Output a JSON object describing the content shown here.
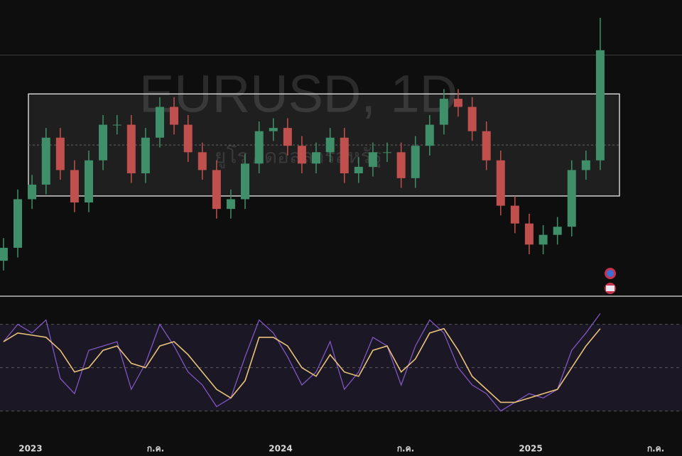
{
  "chart_data": {
    "type": "candlestick",
    "title": "EURUSD, 1D",
    "subtitle": "ยูโร / ดอลลาร์สหรัฐ",
    "x": [
      2022.892,
      2022.949,
      2023.006,
      2023.062,
      2023.119,
      2023.176,
      2023.233,
      2023.29,
      2023.346,
      2023.403,
      2023.46,
      2023.517,
      2023.574,
      2023.63,
      2023.687,
      2023.744,
      2023.801,
      2023.858,
      2023.914,
      2023.971,
      2024.028,
      2024.085,
      2024.142,
      2024.198,
      2024.255,
      2024.312,
      2024.369,
      2024.426,
      2024.482,
      2024.539,
      2024.596,
      2024.653,
      2024.71,
      2024.766,
      2024.823,
      2024.88,
      2024.937,
      2024.994,
      2025.05,
      2025.107,
      2025.164,
      2025.221,
      2025.278
    ],
    "open": [
      1.03,
      1.038,
      1.068,
      1.077,
      1.106,
      1.086,
      1.066,
      1.092,
      1.114,
      1.114,
      1.084,
      1.106,
      1.125,
      1.114,
      1.097,
      1.086,
      1.062,
      1.068,
      1.09,
      1.11,
      1.112,
      1.101,
      1.09,
      1.097,
      1.106,
      1.084,
      1.088,
      1.097,
      1.097,
      1.081,
      1.101,
      1.114,
      1.13,
      1.125,
      1.11,
      1.092,
      1.064,
      1.053,
      1.04,
      1.046,
      1.051,
      1.086,
      1.092
    ],
    "high": [
      1.044,
      1.074,
      1.083,
      1.112,
      1.112,
      1.092,
      1.098,
      1.12,
      1.12,
      1.12,
      1.112,
      1.131,
      1.131,
      1.12,
      1.103,
      1.092,
      1.074,
      1.096,
      1.116,
      1.118,
      1.118,
      1.107,
      1.103,
      1.112,
      1.112,
      1.094,
      1.103,
      1.103,
      1.103,
      1.107,
      1.12,
      1.136,
      1.136,
      1.131,
      1.116,
      1.098,
      1.07,
      1.059,
      1.052,
      1.057,
      1.092,
      1.098,
      1.18
    ],
    "low": [
      1.024,
      1.032,
      1.062,
      1.071,
      1.08,
      1.06,
      1.06,
      1.086,
      1.108,
      1.078,
      1.078,
      1.1,
      1.108,
      1.091,
      1.08,
      1.056,
      1.056,
      1.062,
      1.084,
      1.104,
      1.095,
      1.084,
      1.084,
      1.091,
      1.078,
      1.078,
      1.082,
      1.091,
      1.075,
      1.075,
      1.095,
      1.108,
      1.119,
      1.104,
      1.086,
      1.058,
      1.047,
      1.034,
      1.034,
      1.04,
      1.045,
      1.08,
      1.086
    ],
    "close": [
      1.038,
      1.068,
      1.077,
      1.106,
      1.086,
      1.066,
      1.092,
      1.114,
      1.114,
      1.084,
      1.106,
      1.125,
      1.114,
      1.097,
      1.086,
      1.062,
      1.068,
      1.09,
      1.11,
      1.112,
      1.101,
      1.09,
      1.097,
      1.106,
      1.084,
      1.088,
      1.097,
      1.097,
      1.081,
      1.101,
      1.114,
      1.13,
      1.125,
      1.11,
      1.092,
      1.064,
      1.053,
      1.04,
      1.046,
      1.051,
      1.086,
      1.092,
      1.16
    ],
    "up_color": "#3f8f6a",
    "down_color": "#c0504d",
    "xlim": [
      2022.878,
      2025.605
    ],
    "xticks": [
      2023,
      {
        "value": 2023.5,
        "label": "ก.ค."
      },
      2024,
      {
        "value": 2024.5,
        "label": "ก.ค."
      },
      2025,
      {
        "value": 2025.5,
        "label": "ก.ค."
      }
    ],
    "ylim": [
      1.009,
      1.191
    ],
    "range_box": [
      1.07,
      1.133
    ],
    "price_line": 1.157,
    "rsi": {
      "ylim": [
        23,
        82
      ],
      "yticks": [
        30,
        50,
        70
      ],
      "series": [
        {
          "color": "#7e57c2",
          "values": [
            62,
            70,
            66,
            72,
            45,
            38,
            58,
            60,
            62,
            40,
            52,
            70,
            60,
            48,
            42,
            32,
            36,
            55,
            72,
            66,
            55,
            42,
            48,
            62,
            40,
            48,
            64,
            60,
            42,
            60,
            72,
            66,
            50,
            42,
            38,
            30,
            34,
            38,
            36,
            40,
            58,
            66,
            75
          ]
        },
        {
          "color": "#e8c27a",
          "values": [
            62,
            66,
            65,
            64,
            58,
            48,
            50,
            58,
            60,
            52,
            50,
            60,
            62,
            56,
            48,
            40,
            36,
            44,
            64,
            64,
            60,
            50,
            46,
            56,
            48,
            46,
            58,
            60,
            48,
            54,
            66,
            68,
            58,
            46,
            40,
            34,
            34,
            36,
            38,
            40,
            50,
            60,
            68
          ]
        }
      ]
    }
  }
}
